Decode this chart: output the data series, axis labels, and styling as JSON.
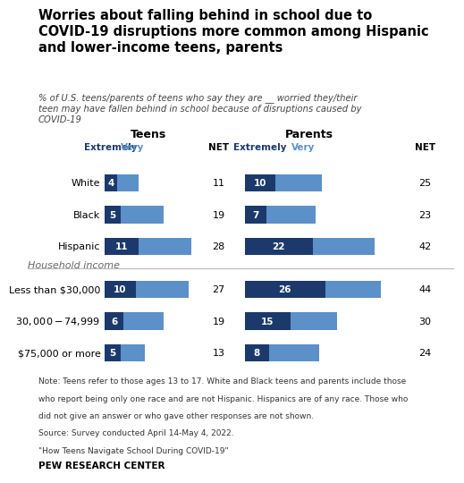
{
  "title": "Worries about falling behind in school due to\nCOVID-19 disruptions more common among Hispanic\nand lower-income teens, parents",
  "subtitle": "% of U.S. teens/parents of teens who say they are __ worried they/their\nteen may have fallen behind in school because of disruptions caused by\nCOVID-19",
  "categories": [
    "White",
    "Black",
    "Hispanic",
    "Less than $30,000",
    "$30,000-$74,999",
    "$75,000 or more"
  ],
  "income_label": "Household income",
  "teens_extremely": [
    4,
    5,
    11,
    10,
    6,
    5
  ],
  "teens_very": [
    7,
    14,
    17,
    17,
    13,
    8
  ],
  "teens_net": [
    11,
    19,
    28,
    27,
    19,
    13
  ],
  "parents_extremely": [
    10,
    7,
    22,
    26,
    15,
    8
  ],
  "parents_very": [
    15,
    16,
    20,
    18,
    15,
    16
  ],
  "parents_net": [
    25,
    23,
    42,
    44,
    30,
    24
  ],
  "color_extremely": "#1b3a6b",
  "color_very": "#5b90c8",
  "color_extremely_label": "Extremely",
  "color_very_label": "Very",
  "teens_label": "Teens",
  "parents_label": "Parents",
  "net_label": "NET",
  "note": "Note: Teens refer to those ages 13 to 17. White and Black teens and parents include those\nwho report being only one race and are not Hispanic. Hispanics are of any race. Those who\ndid not give an answer or who gave other responses are not shown.\nSource: Survey conducted April 14-May 4, 2022.\n\"How Teens Navigate School During COVID-19\"",
  "org": "PEW RESEARCH CENTER",
  "background": "#ffffff",
  "bar_height": 0.55,
  "scale": 0.9
}
